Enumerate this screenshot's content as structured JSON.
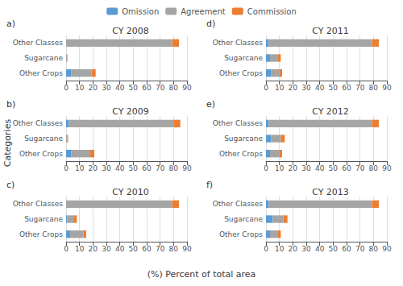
{
  "xlabel": "(%) Percent of total area",
  "ylabel": "Categories",
  "chart_data": [
    {
      "type": "bar",
      "title": "CY 2008",
      "annotations": [
        "a)"
      ],
      "orientation": "horizontal",
      "stacked": true,
      "categories": [
        "Other Classes",
        "Sugarcane",
        "Other Crops"
      ],
      "series": [
        {
          "name": "Omission",
          "color": "#5B9BD5",
          "values": [
            0,
            0,
            4
          ]
        },
        {
          "name": "Agreement",
          "color": "#A5A5A5",
          "values": [
            79,
            0.5,
            15
          ]
        },
        {
          "name": "Commission",
          "color": "#ED7D31",
          "values": [
            5,
            0.5,
            3
          ]
        }
      ],
      "xlim": [
        0,
        90
      ],
      "xticks": [
        0,
        10,
        20,
        30,
        40,
        50,
        60,
        70,
        80,
        90
      ],
      "grid": true,
      "legend": "top"
    },
    {
      "type": "bar",
      "title": "CY 2009",
      "annotations": [
        "b)"
      ],
      "orientation": "horizontal",
      "stacked": true,
      "categories": [
        "Other Classes",
        "Sugarcane",
        "Other Crops"
      ],
      "series": [
        {
          "name": "Omission",
          "color": "#5B9BD5",
          "values": [
            2,
            0,
            4
          ]
        },
        {
          "name": "Agreement",
          "color": "#A5A5A5",
          "values": [
            78,
            1,
            14
          ]
        },
        {
          "name": "Commission",
          "color": "#ED7D31",
          "values": [
            5,
            0.5,
            3
          ]
        }
      ],
      "xlim": [
        0,
        90
      ],
      "xticks": [
        0,
        10,
        20,
        30,
        40,
        50,
        60,
        70,
        80,
        90
      ],
      "grid": true,
      "legend": "top"
    },
    {
      "type": "bar",
      "title": "CY 2010",
      "annotations": [
        "c)"
      ],
      "orientation": "horizontal",
      "stacked": true,
      "categories": [
        "Other Classes",
        "Sugarcane",
        "Other Crops"
      ],
      "series": [
        {
          "name": "Omission",
          "color": "#5B9BD5",
          "values": [
            0,
            1,
            3
          ]
        },
        {
          "name": "Agreement",
          "color": "#A5A5A5",
          "values": [
            79,
            5,
            10
          ]
        },
        {
          "name": "Commission",
          "color": "#ED7D31",
          "values": [
            5,
            2,
            2
          ]
        }
      ],
      "xlim": [
        0,
        90
      ],
      "xticks": [
        0,
        10,
        20,
        30,
        40,
        50,
        60,
        70,
        80,
        90
      ],
      "grid": true,
      "legend": "top"
    },
    {
      "type": "bar",
      "title": "CY 2011",
      "annotations": [
        "d)"
      ],
      "orientation": "horizontal",
      "stacked": true,
      "categories": [
        "Other Classes",
        "Sugarcane",
        "Other Crops"
      ],
      "series": [
        {
          "name": "Omission",
          "color": "#5B9BD5",
          "values": [
            2,
            3,
            4
          ]
        },
        {
          "name": "Agreement",
          "color": "#A5A5A5",
          "values": [
            77,
            6,
            6
          ]
        },
        {
          "name": "Commission",
          "color": "#ED7D31",
          "values": [
            5,
            2,
            2
          ]
        }
      ],
      "xlim": [
        0,
        90
      ],
      "xticks": [
        0,
        10,
        20,
        30,
        40,
        50,
        60,
        70,
        80,
        90
      ],
      "grid": true,
      "legend": "top"
    },
    {
      "type": "bar",
      "title": "CY 2012",
      "annotations": [
        "e)"
      ],
      "orientation": "horizontal",
      "stacked": true,
      "categories": [
        "Other Classes",
        "Sugarcane",
        "Other Crops"
      ],
      "series": [
        {
          "name": "Omission",
          "color": "#5B9BD5",
          "values": [
            2,
            4,
            3
          ]
        },
        {
          "name": "Agreement",
          "color": "#A5A5A5",
          "values": [
            77,
            7,
            7
          ]
        },
        {
          "name": "Commission",
          "color": "#ED7D31",
          "values": [
            5,
            3,
            2
          ]
        }
      ],
      "xlim": [
        0,
        90
      ],
      "xticks": [
        0,
        10,
        20,
        30,
        40,
        50,
        60,
        70,
        80,
        90
      ],
      "grid": true,
      "legend": "top"
    },
    {
      "type": "bar",
      "title": "CY 2013",
      "annotations": [
        "f)"
      ],
      "orientation": "horizontal",
      "stacked": true,
      "categories": [
        "Other Classes",
        "Sugarcane",
        "Other Crops"
      ],
      "series": [
        {
          "name": "Omission",
          "color": "#5B9BD5",
          "values": [
            2,
            5,
            3
          ]
        },
        {
          "name": "Agreement",
          "color": "#A5A5A5",
          "values": [
            77,
            8,
            6
          ]
        },
        {
          "name": "Commission",
          "color": "#ED7D31",
          "values": [
            5,
            3,
            2
          ]
        }
      ],
      "xlim": [
        0,
        90
      ],
      "xticks": [
        0,
        10,
        20,
        30,
        40,
        50,
        60,
        70,
        80,
        90
      ],
      "grid": true,
      "legend": "top"
    }
  ]
}
